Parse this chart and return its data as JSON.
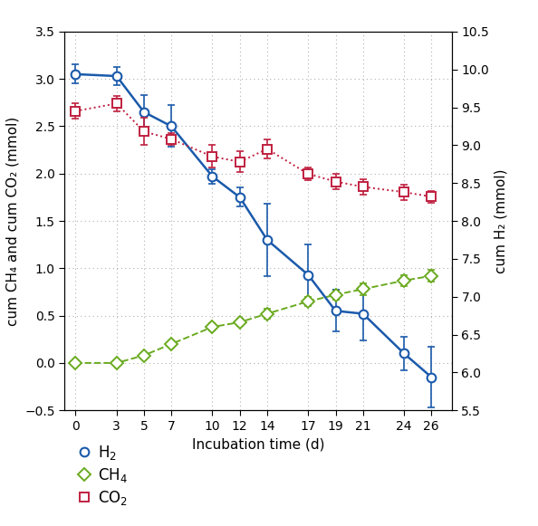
{
  "title": "",
  "xlabel": "Incubation time (d)",
  "ylabel_left": "cum CH₄ and cum CO₂ (mmol)",
  "ylabel_right": "cum H₂ (mmol)",
  "xlim": [
    -0.8,
    27.5
  ],
  "ylim_left": [
    -0.5,
    3.5
  ],
  "ylim_right": [
    5.5,
    10.5
  ],
  "xticks": [
    0,
    3,
    5,
    7,
    10,
    12,
    14,
    17,
    19,
    21,
    24,
    26
  ],
  "yticks_left": [
    -0.5,
    0.0,
    0.5,
    1.0,
    1.5,
    2.0,
    2.5,
    3.0,
    3.5
  ],
  "yticks_right": [
    5.5,
    6.0,
    6.5,
    7.0,
    7.5,
    8.0,
    8.5,
    9.0,
    9.5,
    10.0,
    10.5
  ],
  "h2_x": [
    0,
    3,
    5,
    7,
    10,
    12,
    14,
    17,
    19,
    21,
    24,
    26
  ],
  "h2_y": [
    3.05,
    3.03,
    2.65,
    2.5,
    1.97,
    1.75,
    1.3,
    0.93,
    0.55,
    0.52,
    0.1,
    -0.15
  ],
  "h2_yerr": [
    0.1,
    0.1,
    0.18,
    0.22,
    0.08,
    0.1,
    0.38,
    0.32,
    0.22,
    0.28,
    0.18,
    0.32
  ],
  "h2_color": "#1a5aab",
  "h2_linestyle": "-",
  "ch4_x": [
    0,
    3,
    5,
    7,
    10,
    12,
    14,
    17,
    19,
    21,
    24,
    26
  ],
  "ch4_y": [
    0.0,
    0.0,
    0.08,
    0.2,
    0.38,
    0.43,
    0.52,
    0.65,
    0.72,
    0.78,
    0.87,
    0.92
  ],
  "ch4_yerr": [
    0.01,
    0.01,
    0.02,
    0.03,
    0.04,
    0.04,
    0.05,
    0.05,
    0.05,
    0.06,
    0.06,
    0.06
  ],
  "ch4_color": "#6aaa20",
  "ch4_linestyle": "--",
  "co2_x": [
    0,
    3,
    5,
    7,
    10,
    12,
    14,
    17,
    19,
    21,
    24,
    26
  ],
  "co2_y_right": [
    9.45,
    9.55,
    9.18,
    9.08,
    8.85,
    8.78,
    8.95,
    8.62,
    8.52,
    8.45,
    8.38,
    8.32
  ],
  "co2_yerr": [
    0.1,
    0.1,
    0.18,
    0.08,
    0.15,
    0.14,
    0.12,
    0.08,
    0.1,
    0.1,
    0.1,
    0.08
  ],
  "co2_color": "#c02040",
  "co2_linestyle": ":",
  "background_color": "#ffffff",
  "grid_color": "#b0b0b0",
  "markersize": 7,
  "legend_fontsize": 12,
  "axis_fontsize": 11,
  "tick_fontsize": 10
}
